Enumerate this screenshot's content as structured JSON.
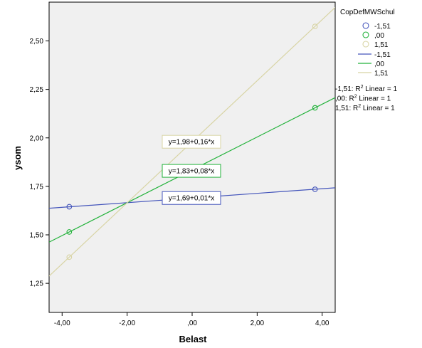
{
  "chart_data": {
    "type": "scatter",
    "xlabel": "Belast",
    "ylabel": "ysom",
    "xlim": [
      -4.4,
      4.4
    ],
    "ylim": [
      1.1,
      2.7
    ],
    "x_ticks": [
      {
        "value": -4,
        "label": "-4,00"
      },
      {
        "value": -2,
        "label": "-2,00"
      },
      {
        "value": 0,
        "label": ",00"
      },
      {
        "value": 2,
        "label": "2,00"
      },
      {
        "value": 4,
        "label": "4,00"
      }
    ],
    "y_ticks": [
      {
        "value": 1.25,
        "label": "1,25"
      },
      {
        "value": 1.5,
        "label": "1,50"
      },
      {
        "value": 1.75,
        "label": "1,75"
      },
      {
        "value": 2.0,
        "label": "2,00"
      },
      {
        "value": 2.25,
        "label": "2,25"
      },
      {
        "value": 2.5,
        "label": "2,50"
      }
    ],
    "legend_title": "CopDefMWSchul",
    "legend_position": "right",
    "series": [
      {
        "name": "-1,51",
        "color": "#4455bb",
        "points": [
          {
            "x": -3.78,
            "y": 1.645
          },
          {
            "x": 3.78,
            "y": 1.735
          }
        ],
        "fit": {
          "intercept": 1.69,
          "slope": 0.012
        },
        "equation": "y=1,69+0,01*x",
        "r2_label": "-1,51: R",
        "eq_label_pos": {
          "x": 0.0,
          "y": 1.69
        }
      },
      {
        "name": ",00",
        "color": "#22b23a",
        "points": [
          {
            "x": -3.78,
            "y": 1.515
          },
          {
            "x": 3.78,
            "y": 2.155
          }
        ],
        "fit": {
          "intercept": 1.835,
          "slope": 0.0847
        },
        "equation": "y=1,83+0,08*x",
        "r2_label": ",00: R",
        "eq_label_pos": {
          "x": 0.0,
          "y": 1.83
        }
      },
      {
        "name": "1,51",
        "color": "#d8d4a4",
        "points": [
          {
            "x": -3.78,
            "y": 1.385
          },
          {
            "x": 3.78,
            "y": 2.575
          }
        ],
        "fit": {
          "intercept": 1.98,
          "slope": 0.1574
        },
        "equation": "y=1,98+0,16*x",
        "r2_label": "1,51: R",
        "eq_label_pos": {
          "x": 0.0,
          "y": 1.98
        }
      }
    ],
    "fit_annotation_suffix": " Linear = 1",
    "superscript": "2"
  }
}
